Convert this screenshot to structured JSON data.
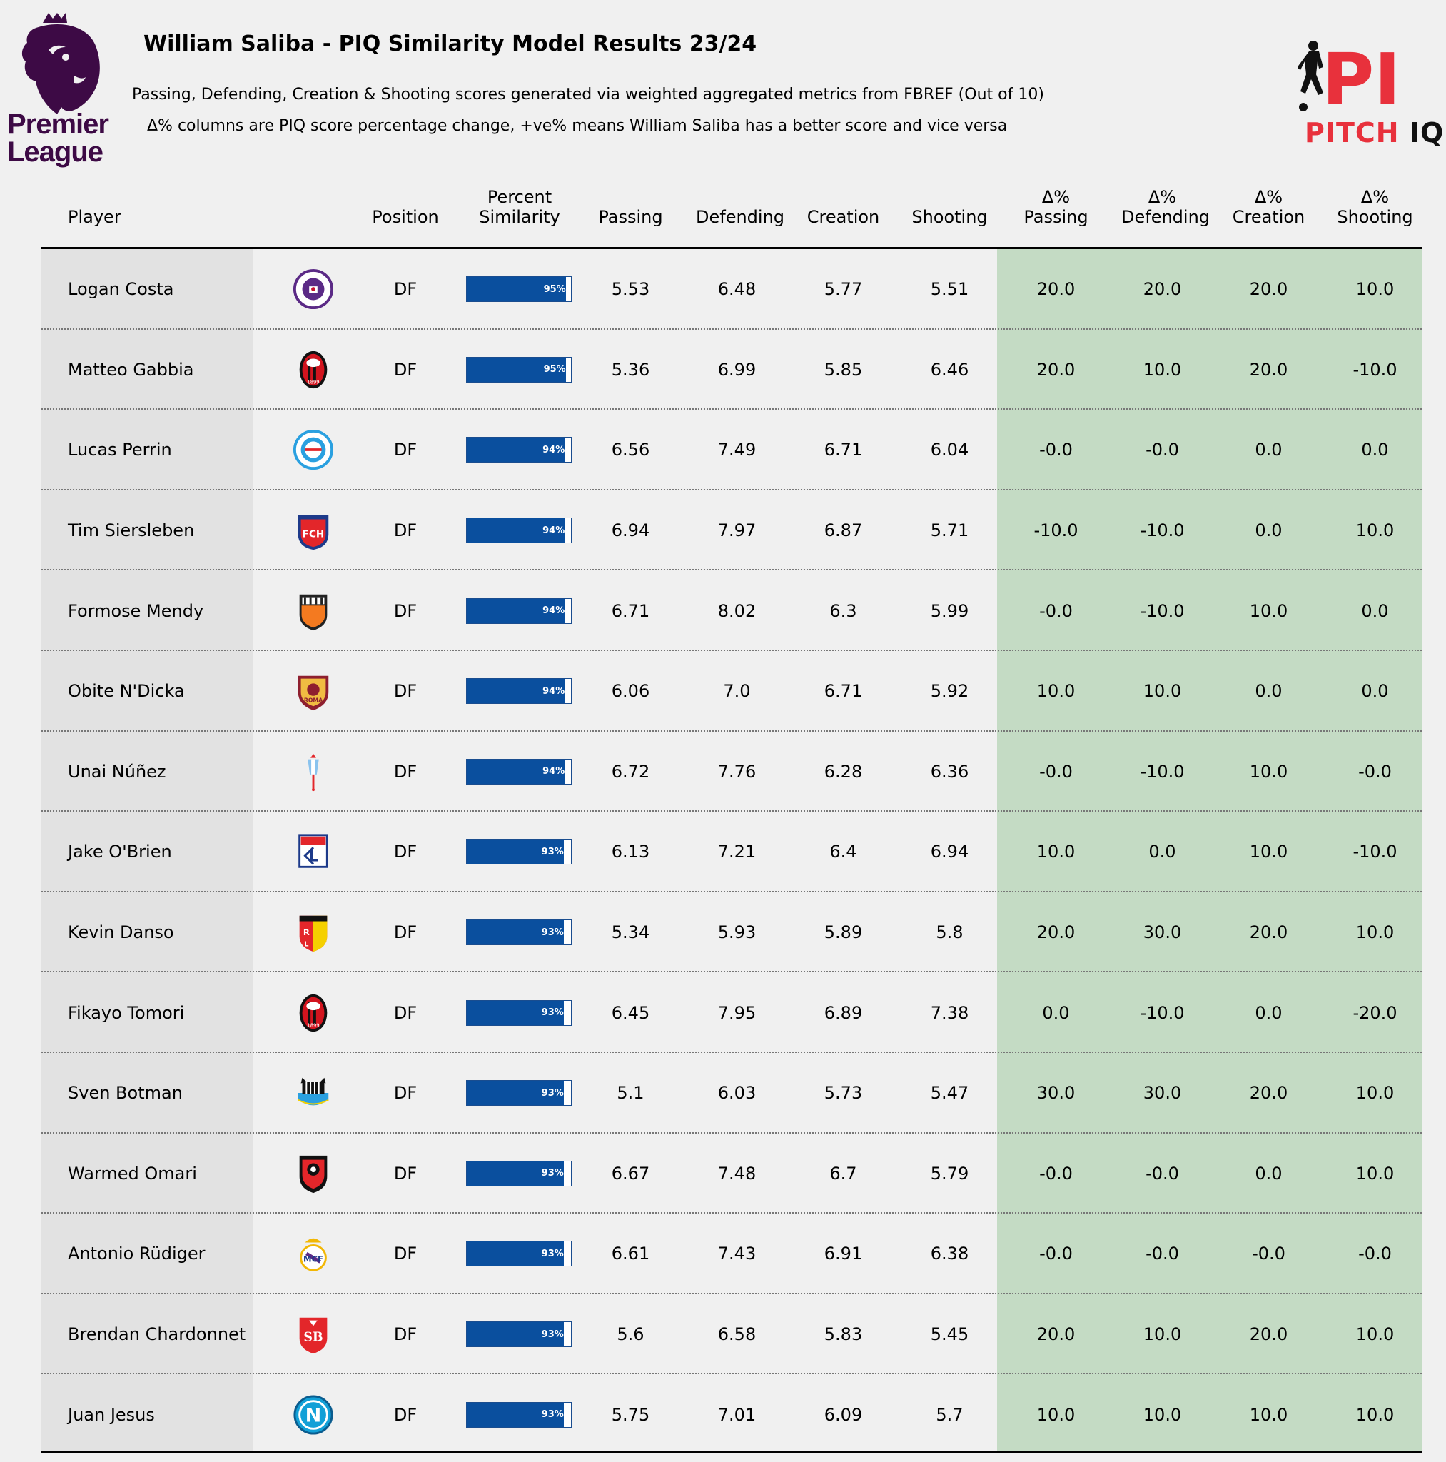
{
  "header": {
    "title": "William Saliba - PIQ Similarity Model Results 23/24",
    "subtitle_1": "Passing, Defending, Creation & Shooting scores generated via weighted aggregated metrics from FBREF (Out of 10)",
    "subtitle_2": "Δ% columns are PIQ score percentage change, +ve% means William Saliba has a better  score and vice versa",
    "league_logo_text_1": "Premier",
    "league_logo_text_2": "League",
    "brand_logo_mark": "PI",
    "brand_word_1": "PITCH",
    "brand_word_2": "IQ"
  },
  "colors": {
    "background": "#f0f0f0",
    "player_column": "#e2e2e2",
    "delta_columns": "#c4dbc4",
    "bar": "#0a4f9e",
    "brand_red": "#e8313c",
    "league_purple": "#3d0a45"
  },
  "chart_data": {
    "type": "table",
    "columns": [
      {
        "key": "player",
        "label": "Player"
      },
      {
        "key": "crest",
        "label": ""
      },
      {
        "key": "position",
        "label": "Position"
      },
      {
        "key": "similarity",
        "label_1": "Percent",
        "label_2": "Similarity"
      },
      {
        "key": "passing",
        "label": "Passing"
      },
      {
        "key": "defending",
        "label": "Defending"
      },
      {
        "key": "creation",
        "label": "Creation"
      },
      {
        "key": "shooting",
        "label": "Shooting"
      },
      {
        "key": "d_passing",
        "label_1": "Δ%",
        "label_2": "Passing"
      },
      {
        "key": "d_defending",
        "label_1": "Δ%",
        "label_2": "Defending"
      },
      {
        "key": "d_creation",
        "label_1": "Δ%",
        "label_2": "Creation"
      },
      {
        "key": "d_shooting",
        "label_1": "Δ%",
        "label_2": "Shooting"
      }
    ],
    "rows": [
      {
        "player": "Logan Costa",
        "crest": "toulouse-crest",
        "position": "DF",
        "similarity": 95,
        "similarity_label": "95%",
        "passing": "5.53",
        "defending": "6.48",
        "creation": "5.77",
        "shooting": "5.51",
        "d_passing": "20.0",
        "d_defending": "20.0",
        "d_creation": "20.0",
        "d_shooting": "10.0"
      },
      {
        "player": "Matteo Gabbia",
        "crest": "ac-milan-crest",
        "position": "DF",
        "similarity": 95,
        "similarity_label": "95%",
        "passing": "5.36",
        "defending": "6.99",
        "creation": "5.85",
        "shooting": "6.46",
        "d_passing": "20.0",
        "d_defending": "10.0",
        "d_creation": "20.0",
        "d_shooting": "-10.0"
      },
      {
        "player": "Lucas Perrin",
        "crest": "strasbourg-crest",
        "position": "DF",
        "similarity": 94,
        "similarity_label": "94%",
        "passing": "6.56",
        "defending": "7.49",
        "creation": "6.71",
        "shooting": "6.04",
        "d_passing": "-0.0",
        "d_defending": "-0.0",
        "d_creation": "0.0",
        "d_shooting": "0.0"
      },
      {
        "player": "Tim Siersleben",
        "crest": "heidenheim-crest",
        "position": "DF",
        "similarity": 94,
        "similarity_label": "94%",
        "passing": "6.94",
        "defending": "7.97",
        "creation": "6.87",
        "shooting": "5.71",
        "d_passing": "-10.0",
        "d_defending": "-10.0",
        "d_creation": "0.0",
        "d_shooting": "10.0"
      },
      {
        "player": "Formose Mendy",
        "crest": "lorient-crest",
        "position": "DF",
        "similarity": 94,
        "similarity_label": "94%",
        "passing": "6.71",
        "defending": "8.02",
        "creation": "6.3",
        "shooting": "5.99",
        "d_passing": "-0.0",
        "d_defending": "-10.0",
        "d_creation": "10.0",
        "d_shooting": "0.0"
      },
      {
        "player": "Obite N'Dicka",
        "crest": "roma-crest",
        "position": "DF",
        "similarity": 94,
        "similarity_label": "94%",
        "passing": "6.06",
        "defending": "7.0",
        "creation": "6.71",
        "shooting": "5.92",
        "d_passing": "10.0",
        "d_defending": "10.0",
        "d_creation": "0.0",
        "d_shooting": "0.0"
      },
      {
        "player": "Unai Núñez",
        "crest": "celta-crest",
        "position": "DF",
        "similarity": 94,
        "similarity_label": "94%",
        "passing": "6.72",
        "defending": "7.76",
        "creation": "6.28",
        "shooting": "6.36",
        "d_passing": "-0.0",
        "d_defending": "-10.0",
        "d_creation": "10.0",
        "d_shooting": "-0.0"
      },
      {
        "player": "Jake O'Brien",
        "crest": "lyon-crest",
        "position": "DF",
        "similarity": 93,
        "similarity_label": "93%",
        "passing": "6.13",
        "defending": "7.21",
        "creation": "6.4",
        "shooting": "6.94",
        "d_passing": "10.0",
        "d_defending": "0.0",
        "d_creation": "10.0",
        "d_shooting": "-10.0"
      },
      {
        "player": "Kevin Danso",
        "crest": "lens-crest",
        "position": "DF",
        "similarity": 93,
        "similarity_label": "93%",
        "passing": "5.34",
        "defending": "5.93",
        "creation": "5.89",
        "shooting": "5.8",
        "d_passing": "20.0",
        "d_defending": "30.0",
        "d_creation": "20.0",
        "d_shooting": "10.0"
      },
      {
        "player": "Fikayo Tomori",
        "crest": "ac-milan-crest",
        "position": "DF",
        "similarity": 93,
        "similarity_label": "93%",
        "passing": "6.45",
        "defending": "7.95",
        "creation": "6.89",
        "shooting": "7.38",
        "d_passing": "0.0",
        "d_defending": "-10.0",
        "d_creation": "0.0",
        "d_shooting": "-20.0"
      },
      {
        "player": "Sven Botman",
        "crest": "newcastle-crest",
        "position": "DF",
        "similarity": 93,
        "similarity_label": "93%",
        "passing": "5.1",
        "defending": "6.03",
        "creation": "5.73",
        "shooting": "5.47",
        "d_passing": "30.0",
        "d_defending": "30.0",
        "d_creation": "20.0",
        "d_shooting": "10.0"
      },
      {
        "player": "Warmed Omari",
        "crest": "rennes-crest",
        "position": "DF",
        "similarity": 93,
        "similarity_label": "93%",
        "passing": "6.67",
        "defending": "7.48",
        "creation": "6.7",
        "shooting": "5.79",
        "d_passing": "-0.0",
        "d_defending": "-0.0",
        "d_creation": "0.0",
        "d_shooting": "10.0"
      },
      {
        "player": "Antonio Rüdiger",
        "crest": "real-madrid-crest",
        "position": "DF",
        "similarity": 93,
        "similarity_label": "93%",
        "passing": "6.61",
        "defending": "7.43",
        "creation": "6.91",
        "shooting": "6.38",
        "d_passing": "-0.0",
        "d_defending": "-0.0",
        "d_creation": "-0.0",
        "d_shooting": "-0.0"
      },
      {
        "player": "Brendan Chardonnet",
        "crest": "brest-crest",
        "position": "DF",
        "similarity": 93,
        "similarity_label": "93%",
        "passing": "5.6",
        "defending": "6.58",
        "creation": "5.83",
        "shooting": "5.45",
        "d_passing": "20.0",
        "d_defending": "10.0",
        "d_creation": "20.0",
        "d_shooting": "10.0"
      },
      {
        "player": "Juan Jesus",
        "crest": "napoli-crest",
        "position": "DF",
        "similarity": 93,
        "similarity_label": "93%",
        "passing": "5.75",
        "defending": "7.01",
        "creation": "6.09",
        "shooting": "5.7",
        "d_passing": "10.0",
        "d_defending": "10.0",
        "d_creation": "10.0",
        "d_shooting": "10.0"
      }
    ]
  }
}
